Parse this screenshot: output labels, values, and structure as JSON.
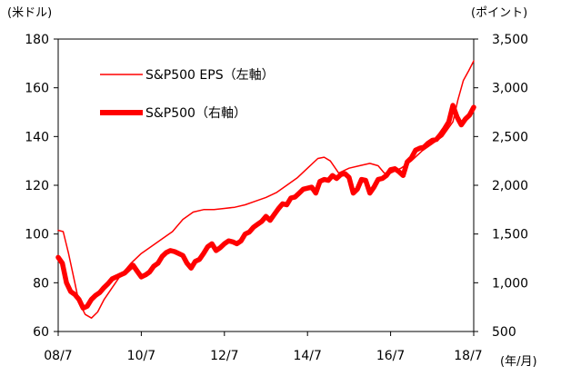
{
  "chart_data": {
    "type": "line",
    "y_left_unit": "(米ドル)",
    "y_right_unit": "(ポイント)",
    "x_unit": "(年/月)",
    "x_ticks": [
      "08/7",
      "10/7",
      "12/7",
      "14/7",
      "16/7",
      "18/7"
    ],
    "y_left_ticks": [
      "60",
      "80",
      "100",
      "120",
      "140",
      "160",
      "180"
    ],
    "y_right_ticks": [
      "500",
      "1,000",
      "1,500",
      "2,000",
      "2,500",
      "3,000",
      "3,500"
    ],
    "xlim": [
      2008.5,
      2018.5
    ],
    "ylim_left": [
      60,
      180
    ],
    "ylim_right": [
      500,
      3500
    ],
    "legend_position": "top-left",
    "colors": {
      "series": "#ff0000",
      "axis": "#000000"
    },
    "series": [
      {
        "name": "S&P500 EPS（左軸）",
        "axis": "left",
        "style": "thin",
        "points": [
          [
            2008.5,
            101.5
          ],
          [
            2008.62,
            101
          ],
          [
            2008.75,
            92
          ],
          [
            2008.9,
            80
          ],
          [
            2009.0,
            72
          ],
          [
            2009.15,
            67
          ],
          [
            2009.3,
            65.5
          ],
          [
            2009.45,
            68
          ],
          [
            2009.6,
            73
          ],
          [
            2009.8,
            78
          ],
          [
            2010.0,
            83
          ],
          [
            2010.25,
            88
          ],
          [
            2010.5,
            92
          ],
          [
            2010.75,
            95
          ],
          [
            2011.0,
            98
          ],
          [
            2011.25,
            101
          ],
          [
            2011.5,
            106
          ],
          [
            2011.75,
            109
          ],
          [
            2012.0,
            110
          ],
          [
            2012.25,
            110
          ],
          [
            2012.5,
            110.5
          ],
          [
            2012.75,
            111
          ],
          [
            2013.0,
            112
          ],
          [
            2013.25,
            113.5
          ],
          [
            2013.5,
            115
          ],
          [
            2013.75,
            117
          ],
          [
            2014.0,
            120
          ],
          [
            2014.25,
            123
          ],
          [
            2014.5,
            127
          ],
          [
            2014.75,
            131
          ],
          [
            2014.9,
            131.5
          ],
          [
            2015.05,
            130
          ],
          [
            2015.25,
            125
          ],
          [
            2015.5,
            127
          ],
          [
            2015.75,
            128
          ],
          [
            2016.0,
            129
          ],
          [
            2016.2,
            128
          ],
          [
            2016.35,
            125
          ],
          [
            2016.5,
            125
          ],
          [
            2016.75,
            127
          ],
          [
            2017.0,
            130
          ],
          [
            2017.25,
            134
          ],
          [
            2017.5,
            137
          ],
          [
            2017.75,
            140
          ],
          [
            2018.0,
            146
          ],
          [
            2018.12,
            155
          ],
          [
            2018.25,
            163
          ],
          [
            2018.38,
            167
          ],
          [
            2018.5,
            171
          ]
        ]
      },
      {
        "name": "S&P500（右軸）",
        "axis": "right",
        "style": "thick",
        "points": [
          [
            2008.5,
            1260
          ],
          [
            2008.6,
            1200
          ],
          [
            2008.7,
            1000
          ],
          [
            2008.8,
            910
          ],
          [
            2008.9,
            880
          ],
          [
            2009.0,
            830
          ],
          [
            2009.1,
            740
          ],
          [
            2009.2,
            760
          ],
          [
            2009.3,
            830
          ],
          [
            2009.4,
            870
          ],
          [
            2009.5,
            900
          ],
          [
            2009.6,
            950
          ],
          [
            2009.7,
            990
          ],
          [
            2009.8,
            1040
          ],
          [
            2009.9,
            1060
          ],
          [
            2010.0,
            1080
          ],
          [
            2010.1,
            1100
          ],
          [
            2010.2,
            1140
          ],
          [
            2010.3,
            1180
          ],
          [
            2010.4,
            1120
          ],
          [
            2010.5,
            1060
          ],
          [
            2010.6,
            1080
          ],
          [
            2010.7,
            1110
          ],
          [
            2010.8,
            1170
          ],
          [
            2010.9,
            1200
          ],
          [
            2011.0,
            1270
          ],
          [
            2011.1,
            1310
          ],
          [
            2011.2,
            1330
          ],
          [
            2011.3,
            1320
          ],
          [
            2011.4,
            1300
          ],
          [
            2011.5,
            1280
          ],
          [
            2011.6,
            1200
          ],
          [
            2011.7,
            1150
          ],
          [
            2011.8,
            1220
          ],
          [
            2011.9,
            1240
          ],
          [
            2012.0,
            1300
          ],
          [
            2012.1,
            1370
          ],
          [
            2012.2,
            1400
          ],
          [
            2012.3,
            1330
          ],
          [
            2012.4,
            1360
          ],
          [
            2012.5,
            1400
          ],
          [
            2012.6,
            1430
          ],
          [
            2012.7,
            1420
          ],
          [
            2012.8,
            1400
          ],
          [
            2012.9,
            1430
          ],
          [
            2013.0,
            1500
          ],
          [
            2013.1,
            1520
          ],
          [
            2013.2,
            1570
          ],
          [
            2013.3,
            1600
          ],
          [
            2013.4,
            1630
          ],
          [
            2013.5,
            1680
          ],
          [
            2013.6,
            1640
          ],
          [
            2013.7,
            1700
          ],
          [
            2013.8,
            1760
          ],
          [
            2013.9,
            1810
          ],
          [
            2014.0,
            1800
          ],
          [
            2014.1,
            1870
          ],
          [
            2014.2,
            1880
          ],
          [
            2014.3,
            1920
          ],
          [
            2014.4,
            1960
          ],
          [
            2014.5,
            1970
          ],
          [
            2014.6,
            1980
          ],
          [
            2014.7,
            1920
          ],
          [
            2014.8,
            2040
          ],
          [
            2014.9,
            2060
          ],
          [
            2015.0,
            2050
          ],
          [
            2015.1,
            2100
          ],
          [
            2015.2,
            2070
          ],
          [
            2015.3,
            2110
          ],
          [
            2015.4,
            2120
          ],
          [
            2015.5,
            2080
          ],
          [
            2015.6,
            1920
          ],
          [
            2015.7,
            1960
          ],
          [
            2015.8,
            2060
          ],
          [
            2015.9,
            2050
          ],
          [
            2016.0,
            1920
          ],
          [
            2016.1,
            1980
          ],
          [
            2016.2,
            2060
          ],
          [
            2016.3,
            2070
          ],
          [
            2016.4,
            2100
          ],
          [
            2016.5,
            2160
          ],
          [
            2016.6,
            2170
          ],
          [
            2016.7,
            2140
          ],
          [
            2016.8,
            2100
          ],
          [
            2016.9,
            2240
          ],
          [
            2017.0,
            2280
          ],
          [
            2017.1,
            2360
          ],
          [
            2017.2,
            2380
          ],
          [
            2017.3,
            2390
          ],
          [
            2017.4,
            2430
          ],
          [
            2017.5,
            2460
          ],
          [
            2017.6,
            2470
          ],
          [
            2017.7,
            2520
          ],
          [
            2017.8,
            2580
          ],
          [
            2017.9,
            2650
          ],
          [
            2018.0,
            2820
          ],
          [
            2018.1,
            2700
          ],
          [
            2018.2,
            2620
          ],
          [
            2018.3,
            2680
          ],
          [
            2018.4,
            2720
          ],
          [
            2018.5,
            2800
          ]
        ]
      }
    ]
  }
}
